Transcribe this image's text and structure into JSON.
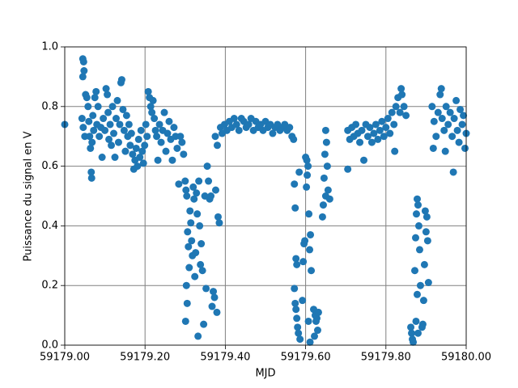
{
  "chart_data": {
    "type": "scatter",
    "xlabel": "MJD",
    "ylabel": "Puissance du signal en V",
    "color": "#1f77b4",
    "grid": true,
    "xlim": [
      59179.0,
      59180.0
    ],
    "xticks": [
      {
        "value": 59179.0,
        "label": "59179.00"
      },
      {
        "value": 59179.2,
        "label": "59179.20"
      },
      {
        "value": 59179.4,
        "label": "59179.40"
      },
      {
        "value": 59179.6,
        "label": "59179.60"
      },
      {
        "value": 59179.8,
        "label": "59179.80"
      },
      {
        "value": 59180.0,
        "label": "59180.00"
      }
    ],
    "ylim": [
      0,
      1
    ],
    "yticks": [
      {
        "value": 0,
        "label": "0.0"
      },
      0.2,
      0.4,
      0.6,
      0.8,
      {
        "value": 1,
        "label": "1.0"
      }
    ],
    "x": [
      59179.0,
      59179.045,
      59179.047,
      59179.045,
      59179.048,
      59179.043,
      59179.046,
      59179.05,
      59179.052,
      59179.055,
      59179.058,
      59179.06,
      59179.062,
      59179.064,
      59179.066,
      59179.067,
      59179.068,
      59179.07,
      59179.072,
      59179.075,
      59179.078,
      59179.08,
      59179.083,
      59179.086,
      59179.09,
      59179.093,
      59179.096,
      59179.1,
      59179.103,
      59179.106,
      59179.108,
      59179.11,
      59179.113,
      59179.116,
      59179.119,
      59179.122,
      59179.125,
      59179.128,
      59179.131,
      59179.134,
      59179.137,
      59179.14,
      59179.142,
      59179.145,
      59179.148,
      59179.151,
      59179.154,
      59179.157,
      59179.16,
      59179.163,
      59179.166,
      59179.169,
      59179.172,
      59179.175,
      59179.178,
      59179.181,
      59179.184,
      59179.187,
      59179.19,
      59179.193,
      59179.196,
      59179.199,
      59179.202,
      59179.205,
      59179.208,
      59179.211,
      59179.214,
      59179.217,
      59179.22,
      59179.223,
      59179.226,
      59179.229,
      59179.232,
      59179.236,
      59179.24,
      59179.244,
      59179.248,
      59179.252,
      59179.256,
      59179.26,
      59179.264,
      59179.268,
      59179.272,
      59179.276,
      59179.28,
      59179.284,
      59179.288,
      59179.292,
      59179.296,
      59179.3,
      59179.302,
      59179.304,
      59179.306,
      59179.308,
      59179.31,
      59179.303,
      59179.305,
      59179.301,
      59179.312,
      59179.314,
      59179.316,
      59179.318,
      59179.32,
      59179.322,
      59179.324,
      59179.326,
      59179.328,
      59179.33,
      59179.332,
      59179.334,
      59179.336,
      59179.338,
      59179.34,
      59179.343,
      59179.346,
      59179.349,
      59179.352,
      59179.355,
      59179.358,
      59179.361,
      59179.364,
      59179.367,
      59179.37,
      59179.373,
      59179.376,
      59179.379,
      59179.382,
      59179.385,
      59179.375,
      59179.38,
      59179.388,
      59179.392,
      59179.398,
      59179.404,
      59179.41,
      59179.416,
      59179.422,
      59179.428,
      59179.434,
      59179.44,
      59179.446,
      59179.452,
      59179.458,
      59179.464,
      59179.47,
      59179.476,
      59179.482,
      59179.488,
      59179.494,
      59179.5,
      59179.506,
      59179.512,
      59179.518,
      59179.524,
      59179.53,
      59179.536,
      59179.542,
      59179.548,
      59179.554,
      59179.56,
      59179.566,
      59179.57,
      59179.572,
      59179.574,
      59179.576,
      59179.578,
      59179.572,
      59179.574,
      59179.576,
      59179.578,
      59179.58,
      59179.582,
      59179.584,
      59179.586,
      59179.6,
      59179.603,
      59179.606,
      59179.604,
      59179.602,
      59179.608,
      59179.612,
      59179.598,
      59179.596,
      59179.61,
      59179.594,
      59179.614,
      59179.592,
      59179.607,
      59179.611,
      59179.62,
      59179.624,
      59179.628,
      59179.632,
      59179.626,
      59179.63,
      59179.622,
      59179.65,
      59179.652,
      59179.648,
      59179.654,
      59179.646,
      59179.656,
      59179.65,
      59179.66,
      59179.644,
      59179.642,
      59179.705,
      59179.71,
      59179.705,
      59179.715,
      59179.72,
      59179.725,
      59179.73,
      59179.735,
      59179.74,
      59179.745,
      59179.75,
      59179.755,
      59179.76,
      59179.765,
      59179.77,
      59179.775,
      59179.78,
      59179.785,
      59179.79,
      59179.795,
      59179.8,
      59179.805,
      59179.81,
      59179.815,
      59179.82,
      59179.822,
      59179.825,
      59179.83,
      59179.835,
      59179.838,
      59179.84,
      59179.845,
      59179.85,
      59179.862,
      59179.864,
      59179.866,
      59179.868,
      59179.878,
      59179.88,
      59179.876,
      59179.882,
      59179.874,
      59179.884,
      59179.872,
      59179.886,
      59179.878,
      59179.875,
      59179.88,
      59179.898,
      59179.902,
      59179.9,
      59179.904,
      59179.896,
      59179.906,
      59179.894,
      59179.892,
      59179.89,
      59179.915,
      59179.92,
      59179.925,
      59179.918,
      59179.93,
      59179.935,
      59179.938,
      59179.94,
      59179.945,
      59179.948,
      59179.95,
      59179.955,
      59179.96,
      59179.965,
      59179.968,
      59179.97,
      59179.975,
      59179.978,
      59179.982,
      59179.985,
      59179.99,
      59179.993,
      59179.997,
      59180.0
    ],
    "values": [
      0.74,
      0.96,
      0.95,
      0.9,
      0.92,
      0.76,
      0.73,
      0.7,
      0.84,
      0.83,
      0.8,
      0.75,
      0.7,
      0.66,
      0.58,
      0.56,
      0.68,
      0.77,
      0.72,
      0.83,
      0.85,
      0.74,
      0.8,
      0.7,
      0.73,
      0.63,
      0.76,
      0.72,
      0.86,
      0.84,
      0.78,
      0.69,
      0.74,
      0.67,
      0.8,
      0.71,
      0.63,
      0.76,
      0.82,
      0.68,
      0.74,
      0.88,
      0.89,
      0.79,
      0.72,
      0.65,
      0.77,
      0.7,
      0.74,
      0.67,
      0.71,
      0.64,
      0.59,
      0.62,
      0.66,
      0.6,
      0.69,
      0.63,
      0.72,
      0.65,
      0.61,
      0.67,
      0.74,
      0.7,
      0.85,
      0.83,
      0.8,
      0.78,
      0.82,
      0.76,
      0.72,
      0.7,
      0.62,
      0.74,
      0.68,
      0.72,
      0.78,
      0.65,
      0.71,
      0.75,
      0.69,
      0.62,
      0.73,
      0.7,
      0.66,
      0.54,
      0.7,
      0.68,
      0.64,
      0.55,
      0.52,
      0.5,
      0.38,
      0.33,
      0.26,
      0.2,
      0.14,
      0.08,
      0.45,
      0.41,
      0.35,
      0.3,
      0.53,
      0.49,
      0.23,
      0.31,
      0.51,
      0.44,
      0.03,
      0.55,
      0.4,
      0.27,
      0.34,
      0.25,
      0.07,
      0.5,
      0.19,
      0.6,
      0.55,
      0.49,
      0.5,
      0.13,
      0.18,
      0.16,
      0.52,
      0.11,
      0.43,
      0.41,
      0.7,
      0.67,
      0.73,
      0.71,
      0.74,
      0.72,
      0.75,
      0.73,
      0.76,
      0.74,
      0.72,
      0.76,
      0.75,
      0.73,
      0.74,
      0.76,
      0.72,
      0.75,
      0.73,
      0.74,
      0.72,
      0.75,
      0.73,
      0.74,
      0.71,
      0.73,
      0.74,
      0.72,
      0.73,
      0.74,
      0.72,
      0.73,
      0.7,
      0.69,
      0.54,
      0.46,
      0.29,
      0.27,
      0.19,
      0.14,
      0.12,
      0.09,
      0.06,
      0.04,
      0.58,
      0.02,
      0.63,
      0.62,
      0.6,
      0.57,
      0.53,
      0.44,
      0.37,
      0.35,
      0.34,
      0.32,
      0.28,
      0.25,
      0.15,
      0.08,
      0.01,
      0.12,
      0.1,
      0.09,
      0.11,
      0.08,
      0.05,
      0.03,
      0.72,
      0.68,
      0.64,
      0.6,
      0.56,
      0.52,
      0.5,
      0.49,
      0.47,
      0.43,
      0.72,
      0.69,
      0.59,
      0.73,
      0.7,
      0.74,
      0.71,
      0.68,
      0.72,
      0.62,
      0.74,
      0.7,
      0.73,
      0.68,
      0.71,
      0.74,
      0.69,
      0.72,
      0.75,
      0.7,
      0.73,
      0.76,
      0.71,
      0.78,
      0.74,
      0.65,
      0.8,
      0.83,
      0.78,
      0.86,
      0.84,
      0.8,
      0.77,
      0.06,
      0.04,
      0.02,
      0.01,
      0.49,
      0.47,
      0.44,
      0.4,
      0.36,
      0.32,
      0.25,
      0.2,
      0.17,
      0.08,
      0.04,
      0.45,
      0.43,
      0.38,
      0.35,
      0.27,
      0.21,
      0.15,
      0.07,
      0.06,
      0.8,
      0.75,
      0.7,
      0.66,
      0.78,
      0.84,
      0.86,
      0.76,
      0.72,
      0.65,
      0.8,
      0.74,
      0.78,
      0.7,
      0.58,
      0.76,
      0.82,
      0.72,
      0.68,
      0.79,
      0.74,
      0.77,
      0.66,
      0.71
    ]
  }
}
